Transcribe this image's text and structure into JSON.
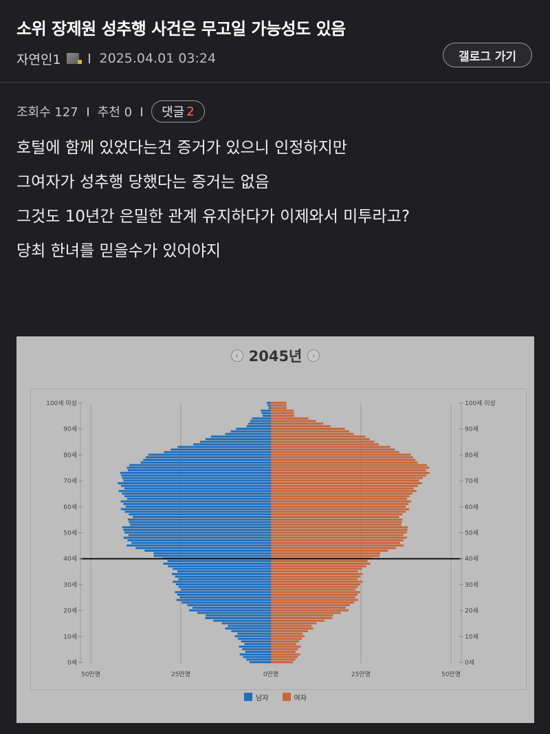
{
  "post": {
    "title": "소위 장제원 성추행 사건은 무고일 가능성도 있음",
    "author": "자연인1",
    "datetime": "2025.04.01 03:24",
    "gallery_button": "갤로그 가기",
    "views_label": "조회수 127",
    "recommend_label": "추천 0",
    "comment_label": "댓글",
    "comment_count": "2",
    "body": [
      "호털에 함께 있었다는건 증거가 있으니 인정하지만",
      "그여자가 성추행 당했다는 증거는 없음",
      "그것도 10년간 은밀한 관계 유지하다가 이제와서 미투라고?",
      "당최 한녀를 믿을수가 있어야지"
    ],
    "icons": {
      "user_badge": "level-badge-icon",
      "prev": "prev-arrow-icon",
      "next": "next-arrow-icon"
    }
  },
  "chart_data": {
    "type": "bar",
    "title": "2045년",
    "orientation": "horizontal-pyramid",
    "age_labels": [
      "100세 이상",
      "90세",
      "80세",
      "70세",
      "60세",
      "50세",
      "40세",
      "30세",
      "20세",
      "10세",
      "0세"
    ],
    "x_tick_labels": [
      "50만명",
      "25만명",
      "0만명",
      "25만명",
      "50만명"
    ],
    "xlim": [
      -50,
      50
    ],
    "x_unit": "만명",
    "grid": true,
    "legend_position": "bottom",
    "reference_line_age": 40,
    "series": [
      {
        "name": "남자",
        "color": "#1f6fbf",
        "ages": [
          0,
          5,
          10,
          15,
          20,
          25,
          30,
          35,
          40,
          45,
          50,
          55,
          60,
          65,
          70,
          75,
          80,
          85,
          90,
          95,
          100
        ],
        "values": [
          7,
          8,
          9,
          14,
          22,
          26,
          26,
          27,
          30,
          39,
          41,
          39,
          41,
          41,
          42,
          40,
          33,
          20,
          9,
          3,
          0.8
        ]
      },
      {
        "name": "여자",
        "color": "#c8663a",
        "ages": [
          0,
          5,
          10,
          15,
          20,
          25,
          30,
          35,
          40,
          45,
          50,
          55,
          60,
          65,
          70,
          75,
          80,
          85,
          90,
          95,
          100
        ],
        "values": [
          7,
          7.5,
          8.5,
          13,
          21,
          24,
          24.5,
          25,
          28,
          36,
          38,
          36,
          38,
          39,
          42,
          44,
          38,
          29,
          20,
          7,
          4
        ]
      }
    ]
  }
}
